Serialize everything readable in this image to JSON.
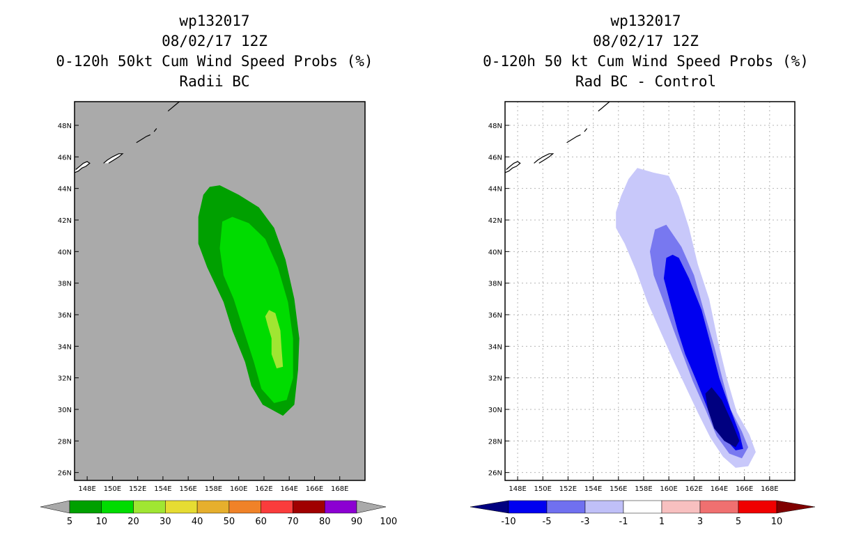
{
  "panels": {
    "left": {
      "title_lines": [
        "wp132017",
        "08/02/17 12Z",
        "0-120h 50kt Cum Wind Speed Probs (%)",
        "Radii BC"
      ],
      "background_color": "#aaaaaa"
    },
    "right": {
      "title_lines": [
        "wp132017",
        "08/02/17 12Z",
        "0-120h 50 kt Cum Wind Speed Probs (%)",
        "Rad BC - Control"
      ],
      "background_color": "#ffffff"
    }
  },
  "chart_data": [
    {
      "type": "heatmap",
      "title": "0-120h 50kt Cum Wind Speed Probs (%)",
      "subtitle": "Radii BC",
      "storm": "wp132017",
      "time": "08/02/17 12Z",
      "xlim": [
        147,
        170
      ],
      "ylim": [
        25.5,
        49.5
      ],
      "x_ticks": [
        "148E",
        "150E",
        "152E",
        "154E",
        "156E",
        "158E",
        "160E",
        "162E",
        "164E",
        "166E",
        "168E"
      ],
      "y_ticks": [
        "26N",
        "28N",
        "30N",
        "32N",
        "34N",
        "36N",
        "38N",
        "40N",
        "42N",
        "44N",
        "46N",
        "48N"
      ],
      "grid": false,
      "colorbar": {
        "labels": [
          "5",
          "10",
          "20",
          "30",
          "40",
          "50",
          "60",
          "70",
          "80",
          "90",
          "100"
        ],
        "colors": [
          "#00a000",
          "#00dc00",
          "#a0e632",
          "#e6dc32",
          "#e6af2d",
          "#f08228",
          "#fa3c3c",
          "#a00000",
          "#8c00d2"
        ]
      },
      "contours": [
        {
          "level": "5-10",
          "color": "#00a000",
          "points": [
            [
              158.5,
              44.2
            ],
            [
              157.7,
              44.1
            ],
            [
              157.2,
              43.6
            ],
            [
              156.8,
              42.2
            ],
            [
              156.8,
              40.5
            ],
            [
              157.5,
              39.0
            ],
            [
              158.8,
              36.8
            ],
            [
              159.5,
              35.0
            ],
            [
              160.5,
              33.0
            ],
            [
              161.0,
              31.5
            ],
            [
              161.9,
              30.3
            ],
            [
              163.5,
              29.6
            ],
            [
              164.4,
              30.3
            ],
            [
              164.7,
              32.5
            ],
            [
              164.8,
              34.5
            ],
            [
              164.4,
              37.0
            ],
            [
              163.7,
              39.5
            ],
            [
              162.8,
              41.5
            ],
            [
              161.6,
              42.8
            ],
            [
              160.0,
              43.6
            ]
          ]
        },
        {
          "level": "10-20",
          "color": "#00dc00",
          "points": [
            [
              159.5,
              42.2
            ],
            [
              158.7,
              41.9
            ],
            [
              158.5,
              40.2
            ],
            [
              158.8,
              38.5
            ],
            [
              159.6,
              37.0
            ],
            [
              160.4,
              35.0
            ],
            [
              161.2,
              33.0
            ],
            [
              161.8,
              31.3
            ],
            [
              162.8,
              30.4
            ],
            [
              163.8,
              30.6
            ],
            [
              164.3,
              32.0
            ],
            [
              164.3,
              34.5
            ],
            [
              163.9,
              36.8
            ],
            [
              163.1,
              39.0
            ],
            [
              162.1,
              40.8
            ],
            [
              160.8,
              41.8
            ]
          ]
        },
        {
          "level": "20-30",
          "color": "#a0e632",
          "points": [
            [
              162.1,
              35.9
            ],
            [
              162.3,
              35.3
            ],
            [
              162.6,
              34.5
            ],
            [
              162.6,
              33.5
            ],
            [
              163.0,
              32.6
            ],
            [
              163.5,
              32.7
            ],
            [
              163.4,
              33.8
            ],
            [
              163.3,
              35.0
            ],
            [
              162.9,
              36.1
            ],
            [
              162.4,
              36.3
            ]
          ]
        }
      ],
      "coastlines": [
        [
          [
            147.0,
            45.0
          ],
          [
            147.3,
            45.1
          ],
          [
            147.6,
            45.3
          ],
          [
            147.9,
            45.4
          ],
          [
            148.2,
            45.6
          ],
          [
            148.0,
            45.7
          ],
          [
            147.7,
            45.6
          ],
          [
            147.4,
            45.4
          ],
          [
            147.1,
            45.2
          ]
        ],
        [
          [
            149.3,
            45.6
          ],
          [
            149.6,
            45.8
          ],
          [
            150.0,
            46.0
          ],
          [
            150.5,
            46.2
          ],
          [
            150.8,
            46.2
          ],
          [
            150.5,
            46.0
          ],
          [
            150.1,
            45.8
          ],
          [
            149.7,
            45.6
          ]
        ],
        [
          [
            151.9,
            46.9
          ],
          [
            152.3,
            47.1
          ],
          [
            152.7,
            47.3
          ],
          [
            153.0,
            47.4
          ]
        ],
        [
          [
            153.3,
            47.6
          ],
          [
            153.5,
            47.8
          ]
        ],
        [
          [
            154.4,
            48.9
          ],
          [
            154.7,
            49.1
          ],
          [
            155.0,
            49.3
          ],
          [
            155.3,
            49.5
          ]
        ]
      ]
    },
    {
      "type": "heatmap",
      "title": "0-120h 50 kt Cum Wind Speed Probs (%)",
      "subtitle": "Rad BC - Control",
      "storm": "wp132017",
      "time": "08/02/17 12Z",
      "xlim": [
        147,
        170
      ],
      "ylim": [
        25.5,
        49.5
      ],
      "x_ticks": [
        "148E",
        "150E",
        "152E",
        "154E",
        "156E",
        "158E",
        "160E",
        "162E",
        "164E",
        "166E",
        "168E"
      ],
      "y_ticks": [
        "26N",
        "28N",
        "30N",
        "32N",
        "34N",
        "36N",
        "38N",
        "40N",
        "42N",
        "44N",
        "46N",
        "48N"
      ],
      "grid": true,
      "colorbar": {
        "labels": [
          "-10",
          "-5",
          "-3",
          "-1",
          "1",
          "3",
          "5",
          "10"
        ],
        "colors": [
          "#000080",
          "#0000f0",
          "#7070f0",
          "#c0c0f8",
          "#ffffff",
          "#f8c0c0",
          "#f07070",
          "#f00000",
          "#800000"
        ]
      },
      "contours": [
        {
          "level": "-3 to -1",
          "color": "#c8c8fa",
          "points": [
            [
              158.8,
              45.0
            ],
            [
              157.5,
              45.3
            ],
            [
              156.8,
              44.6
            ],
            [
              156.2,
              43.5
            ],
            [
              155.8,
              42.5
            ],
            [
              155.8,
              41.5
            ],
            [
              156.5,
              40.5
            ],
            [
              157.4,
              38.8
            ],
            [
              158.3,
              36.8
            ],
            [
              159.3,
              35.0
            ],
            [
              160.3,
              33.2
            ],
            [
              161.3,
              31.5
            ],
            [
              162.3,
              29.8
            ],
            [
              163.3,
              28.2
            ],
            [
              164.3,
              27.0
            ],
            [
              165.3,
              26.3
            ],
            [
              166.3,
              26.4
            ],
            [
              166.9,
              27.3
            ],
            [
              166.4,
              28.4
            ],
            [
              165.4,
              29.8
            ],
            [
              164.6,
              32.0
            ],
            [
              163.9,
              34.3
            ],
            [
              163.2,
              37.0
            ],
            [
              162.3,
              39.2
            ],
            [
              161.6,
              41.5
            ],
            [
              160.8,
              43.5
            ],
            [
              160.0,
              44.8
            ]
          ]
        },
        {
          "level": "-5 to -3",
          "color": "#7878f0",
          "points": [
            [
              159.8,
              41.7
            ],
            [
              158.9,
              41.4
            ],
            [
              158.5,
              40.0
            ],
            [
              158.8,
              38.5
            ],
            [
              159.5,
              37.0
            ],
            [
              160.3,
              35.2
            ],
            [
              161.1,
              33.5
            ],
            [
              161.9,
              31.8
            ],
            [
              162.9,
              30.0
            ],
            [
              163.8,
              28.3
            ],
            [
              164.8,
              27.2
            ],
            [
              165.8,
              26.9
            ],
            [
              166.3,
              27.6
            ],
            [
              165.8,
              28.6
            ],
            [
              164.9,
              30.0
            ],
            [
              164.3,
              31.8
            ],
            [
              163.6,
              34.0
            ],
            [
              162.8,
              36.2
            ],
            [
              162.0,
              38.5
            ],
            [
              161.0,
              40.3
            ]
          ]
        },
        {
          "level": "-10 to -5",
          "color": "#0000f0",
          "points": [
            [
              160.3,
              39.8
            ],
            [
              159.8,
              39.6
            ],
            [
              159.6,
              38.3
            ],
            [
              160.1,
              36.8
            ],
            [
              160.7,
              35.0
            ],
            [
              161.3,
              33.5
            ],
            [
              162.2,
              31.8
            ],
            [
              163.2,
              29.8
            ],
            [
              164.2,
              28.4
            ],
            [
              165.3,
              27.4
            ],
            [
              165.9,
              27.5
            ],
            [
              165.6,
              28.5
            ],
            [
              164.8,
              30.2
            ],
            [
              164.0,
              32.0
            ],
            [
              163.3,
              34.2
            ],
            [
              162.6,
              36.3
            ],
            [
              161.6,
              38.3
            ],
            [
              160.8,
              39.6
            ]
          ]
        },
        {
          "level": "< -10",
          "color": "#000080",
          "points": [
            [
              163.4,
              31.4
            ],
            [
              164.2,
              30.6
            ],
            [
              165.0,
              29.2
            ],
            [
              165.6,
              28.0
            ],
            [
              165.3,
              27.6
            ],
            [
              164.4,
              28.0
            ],
            [
              163.6,
              28.8
            ],
            [
              163.1,
              30.0
            ],
            [
              162.9,
              31.0
            ]
          ]
        }
      ],
      "coastlines": [
        [
          [
            147.0,
            45.0
          ],
          [
            147.3,
            45.1
          ],
          [
            147.6,
            45.3
          ],
          [
            147.9,
            45.4
          ],
          [
            148.2,
            45.6
          ],
          [
            148.0,
            45.7
          ],
          [
            147.7,
            45.6
          ],
          [
            147.4,
            45.4
          ],
          [
            147.1,
            45.2
          ]
        ],
        [
          [
            149.3,
            45.6
          ],
          [
            149.6,
            45.8
          ],
          [
            150.0,
            46.0
          ],
          [
            150.5,
            46.2
          ],
          [
            150.8,
            46.2
          ],
          [
            150.5,
            46.0
          ],
          [
            150.1,
            45.8
          ],
          [
            149.7,
            45.6
          ]
        ],
        [
          [
            151.9,
            46.9
          ],
          [
            152.3,
            47.1
          ],
          [
            152.7,
            47.3
          ],
          [
            153.0,
            47.4
          ]
        ],
        [
          [
            153.3,
            47.6
          ],
          [
            153.5,
            47.8
          ]
        ],
        [
          [
            154.4,
            48.9
          ],
          [
            154.7,
            49.1
          ],
          [
            155.0,
            49.3
          ],
          [
            155.3,
            49.5
          ]
        ]
      ]
    }
  ]
}
